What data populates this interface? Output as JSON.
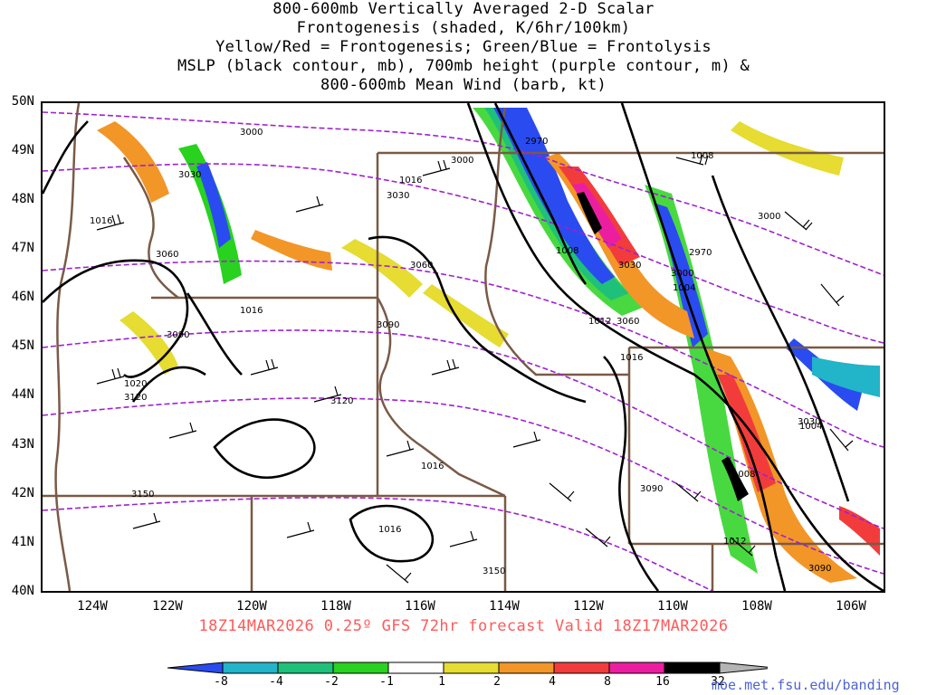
{
  "title": {
    "line1": "800-600mb Vertically Averaged 2-D Scalar",
    "line2": "Frontogenesis (shaded, K/6hr/100km)",
    "line3": "Yellow/Red = Frontogenesis;  Green/Blue = Frontolysis",
    "line4": "MSLP (black contour, mb), 700mb height (purple contour, m) &",
    "line5": "800-600mb Mean Wind (barb, kt)"
  },
  "map": {
    "lat_labels": [
      "50N",
      "49N",
      "48N",
      "47N",
      "46N",
      "45N",
      "44N",
      "43N",
      "42N",
      "41N",
      "40N"
    ],
    "lon_labels": [
      "124W",
      "122W",
      "120W",
      "118W",
      "116W",
      "114W",
      "112W",
      "110W",
      "108W",
      "106W"
    ],
    "lat_range": [
      40,
      50
    ],
    "lon_range": [
      -125,
      -105
    ],
    "mslp_labels": [
      "1016",
      "1016",
      "1016",
      "1016",
      "1020",
      "1016",
      "1012",
      "1016",
      "1008",
      "1008",
      "1012",
      "1004",
      "1004",
      "1008"
    ],
    "height_labels": [
      "3000",
      "3000",
      "2970",
      "3030",
      "3030",
      "3060",
      "3060",
      "3090",
      "3090",
      "3120",
      "3120",
      "3150",
      "3150",
      "3030",
      "2970",
      "3000",
      "3000",
      "3060",
      "3030",
      "3090",
      "3090"
    ]
  },
  "valid_line": "18Z14MAR2026 0.25º GFS 72hr forecast Valid 18Z17MAR2026",
  "colorbar": {
    "labels": [
      "-8",
      "-4",
      "-2",
      "-1",
      "1",
      "2",
      "4",
      "8",
      "16",
      "32"
    ],
    "colors": [
      "#2a4bf0",
      "#22b4c8",
      "#1fc07a",
      "#28d21e",
      "#ffffff",
      "#e6dc32",
      "#f29628",
      "#f23c3c",
      "#ec1ea0",
      "#000000",
      "#b4b4b4"
    ]
  },
  "credit": "moe.met.fsu.edu/banding",
  "colors": {
    "mslp": "#000000",
    "height": "#a020d0",
    "borders": "#7a5a46",
    "valid_text": "#ff5a5a",
    "credit": "#4d63d6"
  }
}
